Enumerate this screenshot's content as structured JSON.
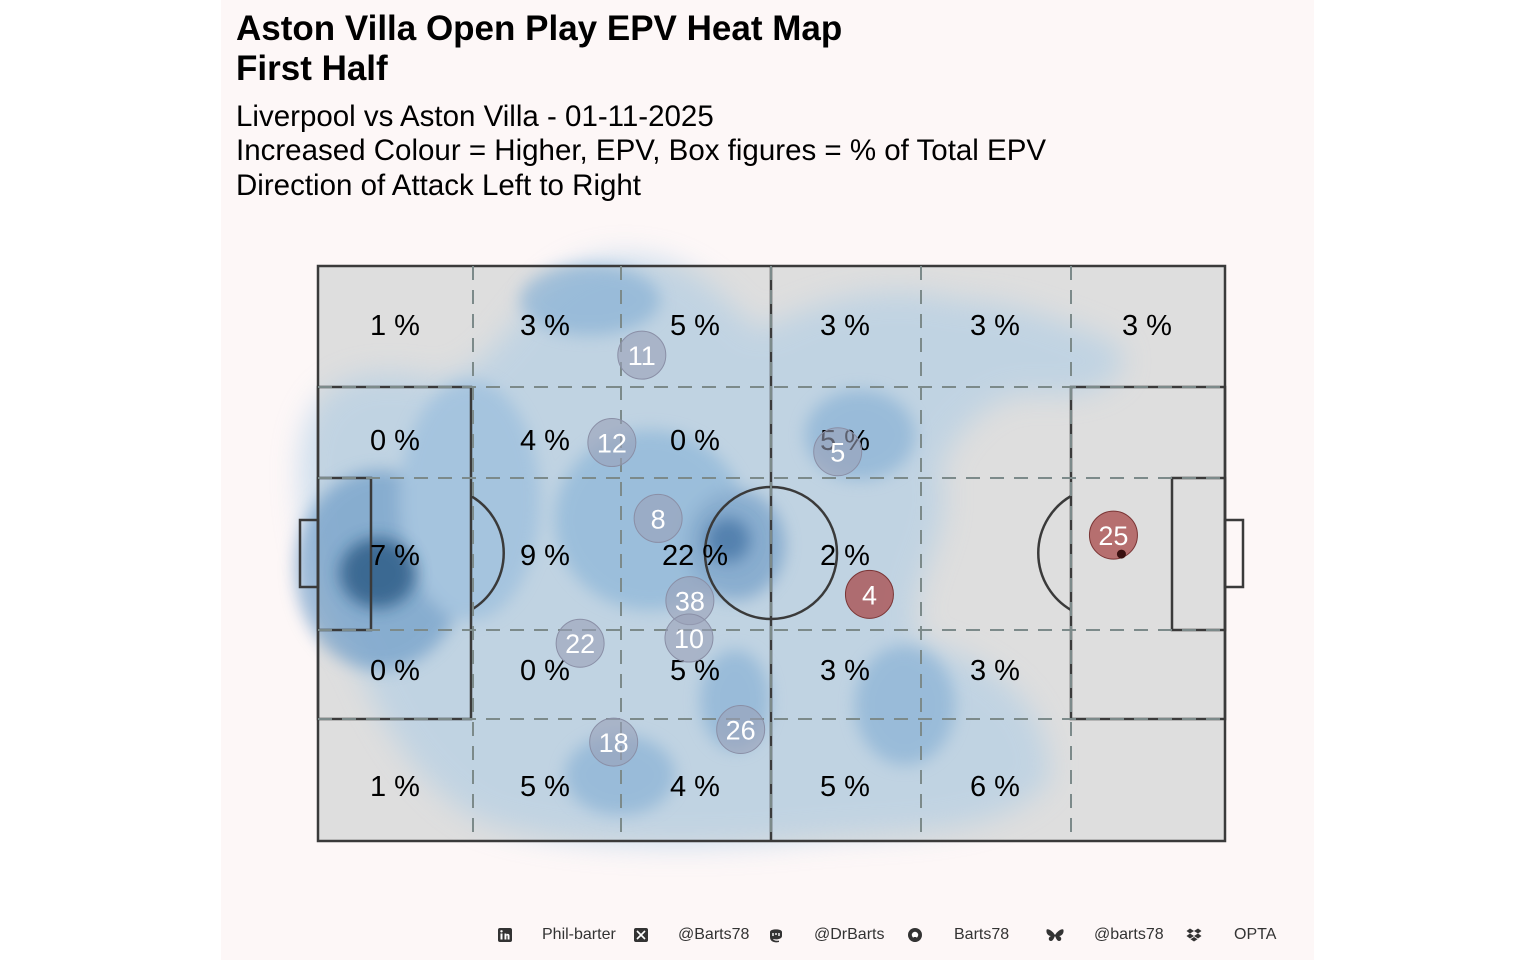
{
  "title_line1": "Aston Villa  Open Play EPV Heat Map",
  "title_line2": "First Half",
  "subtitle_line1": "Liverpool vs Aston Villa - 01-11-2025",
  "subtitle_line2": "Increased Colour = Higher, EPV, Box figures = % of Total EPV",
  "subtitle_line3": "Direction of Attack Left to Right",
  "colors": {
    "panel_bg": "#fdf7f7",
    "pitch_fill": "#dedede",
    "heat": "#6fa8d6",
    "heat_dark": "#1f4e79",
    "player_villa": "#9aa0b8",
    "player_liverpool": "#a84a4a"
  },
  "chart_data": {
    "type": "heatmap",
    "grid_rows": 5,
    "grid_cols": 6,
    "box_labels": [
      [
        "1 %",
        "3 %",
        "5 %",
        "3 %",
        "3 %",
        "3 %"
      ],
      [
        "0 %",
        "4 %",
        "0 %",
        "5 %",
        "",
        ""
      ],
      [
        "7 %",
        "9 %",
        "22 %",
        "2 %",
        "",
        ""
      ],
      [
        "0 %",
        "0 %",
        "5 %",
        "3 %",
        "3 %",
        ""
      ],
      [
        "1 %",
        "5 %",
        "4 %",
        "5 %",
        "6 %",
        ""
      ]
    ],
    "players": [
      {
        "num": "11",
        "x": 35.7,
        "y": 84.5,
        "team": "villa"
      },
      {
        "num": "12",
        "x": 32.4,
        "y": 69.3,
        "team": "villa"
      },
      {
        "num": "5",
        "x": 57.3,
        "y": 67.7,
        "team": "villa"
      },
      {
        "num": "8",
        "x": 37.5,
        "y": 56.1,
        "team": "villa"
      },
      {
        "num": "38",
        "x": 41.0,
        "y": 41.8,
        "team": "villa"
      },
      {
        "num": "10",
        "x": 40.9,
        "y": 35.3,
        "team": "villa"
      },
      {
        "num": "22",
        "x": 28.9,
        "y": 34.4,
        "team": "villa"
      },
      {
        "num": "26",
        "x": 46.6,
        "y": 19.4,
        "team": "villa"
      },
      {
        "num": "18",
        "x": 32.6,
        "y": 17.2,
        "team": "villa"
      },
      {
        "num": "4",
        "x": 60.8,
        "y": 42.9,
        "team": "liverpool"
      },
      {
        "num": "25",
        "x": 87.7,
        "y": 53.2,
        "team": "liverpool"
      }
    ]
  },
  "footer": {
    "linkedin": "Phil-barter",
    "x": "@Barts78",
    "mastodon": "@DrBarts",
    "github": "Barts78",
    "bluesky": "@barts78",
    "dropbox": "OPTA",
    "icons": [
      "linkedin-icon",
      "x-icon",
      "mastodon-icon",
      "github-icon",
      "bluesky-icon",
      "dropbox-icon"
    ]
  }
}
